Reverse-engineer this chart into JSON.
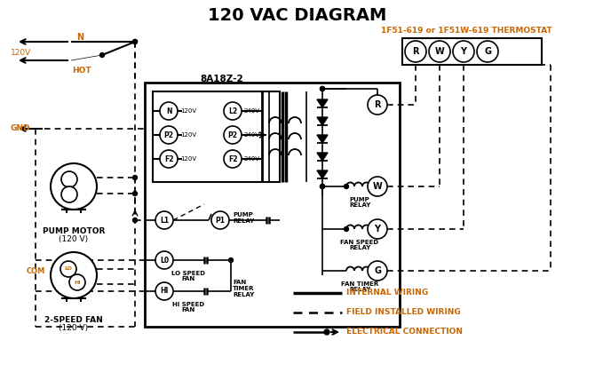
{
  "title": "120 VAC DIAGRAM",
  "title_fontsize": 14,
  "title_color": "#000000",
  "subtitle_thermostat": "1F51-619 or 1F51W-619 THERMOSTAT",
  "subtitle_color": "#cc6600",
  "box_label": "8A18Z-2",
  "bg_color": "#ffffff",
  "line_color": "#000000",
  "orange_color": "#cc6600",
  "legend_internal": "INTERNAL WIRING",
  "legend_field": "FIELD INSTALLED WIRING",
  "legend_elec": "ELECTRICAL CONNECTION",
  "pump_motor_label1": "PUMP MOTOR",
  "pump_motor_label2": "(120 V)",
  "fan_label1": "2-SPEED FAN",
  "fan_label2": "(120 V)",
  "com_label": "COM"
}
